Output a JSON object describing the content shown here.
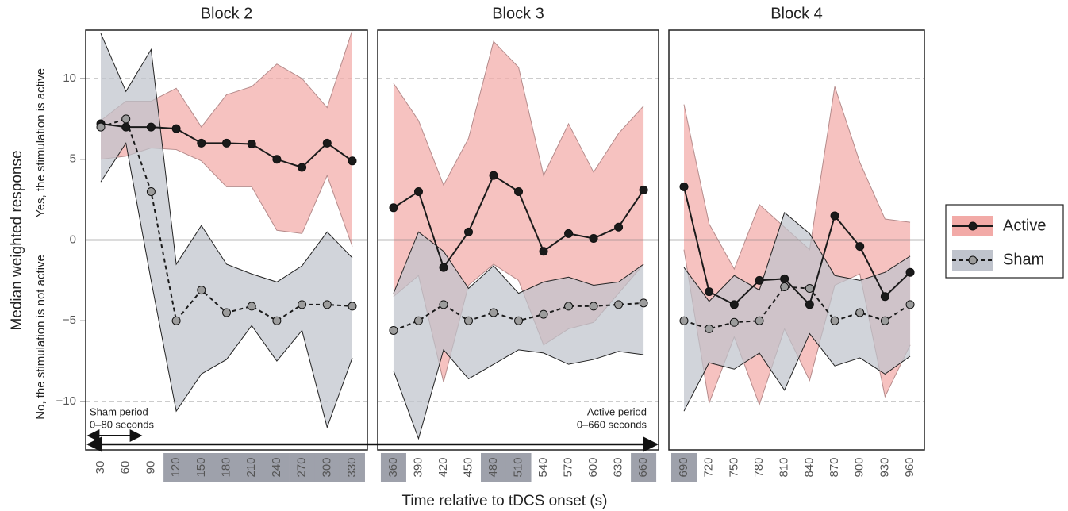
{
  "chart_data": {
    "type": "line",
    "ylabel": "Median weighted response",
    "ylabel_top": "Yes, the stimulation is active",
    "ylabel_bottom": "No, the stimulation is not active",
    "xlabel": "Time relative to tDCS onset (s)",
    "ylim": [
      -13,
      13
    ],
    "yticks": [
      {
        "value": -10,
        "label": "−10"
      },
      {
        "value": -5,
        "label": "−5"
      },
      0,
      5,
      10
    ],
    "dashed_lines": [
      -10,
      10
    ],
    "zero_line": 0,
    "legend": "right",
    "series": [
      {
        "name": "Active",
        "line_color": "#1a1a1a",
        "marker_color": "#1a1a1a",
        "fill": "#f2aaa7",
        "dashed": false
      },
      {
        "name": "Sham",
        "line_color": "#1a1a1a",
        "marker_color": "#9c9c9c",
        "fill": "#bfc3cc",
        "dashed": true
      }
    ],
    "annotations": [
      "Sham period",
      "0–80 seconds",
      "Active period",
      "0–660 seconds"
    ],
    "panels": [
      {
        "title": "Block 2",
        "xlim": [
          12,
          348
        ],
        "x": [
          30,
          60,
          90,
          120,
          150,
          180,
          210,
          240,
          270,
          300,
          330
        ],
        "highlight": [
          false,
          false,
          false,
          true,
          true,
          true,
          true,
          true,
          true,
          true,
          true
        ],
        "series": [
          {
            "values": [
              7.2,
              7.0,
              7.0,
              6.9,
              6.0,
              6.0,
              5.95,
              5.0,
              4.5,
              6.0,
              4.9
            ],
            "upper": [
              7.4,
              8.6,
              8.6,
              9.4,
              7.0,
              9.0,
              9.5,
              10.9,
              10.0,
              8.2,
              13.0
            ],
            "lower": [
              5.0,
              5.2,
              5.7,
              5.6,
              4.9,
              3.3,
              3.3,
              0.6,
              0.4,
              4.0,
              -0.4
            ]
          },
          {
            "values": [
              7.0,
              7.5,
              3.0,
              -5.0,
              -3.1,
              -4.5,
              -4.1,
              -5.0,
              -4.0,
              -4.0,
              -4.1
            ],
            "upper": [
              12.8,
              9.2,
              11.8,
              -1.5,
              0.9,
              -1.5,
              -2.1,
              -2.6,
              -1.6,
              0.5,
              -1.1
            ],
            "lower": [
              3.6,
              6.0,
              -2.5,
              -10.6,
              -8.3,
              -7.4,
              -5.3,
              -7.5,
              -5.6,
              -11.6,
              -7.3
            ]
          }
        ]
      },
      {
        "title": "Block 3",
        "xlim": [
          341,
          678
        ],
        "x": [
          360,
          390,
          420,
          450,
          480,
          510,
          540,
          570,
          600,
          630,
          660
        ],
        "highlight": [
          true,
          false,
          false,
          false,
          true,
          true,
          false,
          false,
          false,
          false,
          true
        ],
        "series": [
          {
            "values": [
              2.0,
              3.0,
              -1.7,
              0.5,
              4.0,
              3.0,
              -0.7,
              0.4,
              0.1,
              0.8,
              3.1
            ],
            "upper": [
              9.7,
              7.4,
              3.4,
              6.3,
              12.3,
              10.7,
              4.0,
              7.2,
              4.2,
              6.6,
              8.3
            ],
            "lower": [
              -3.5,
              -2.2,
              -8.8,
              -2.8,
              -1.5,
              -2.5,
              -6.5,
              -5.5,
              -5.1,
              -3.3,
              -1.5
            ]
          },
          {
            "values": [
              -5.6,
              -5.0,
              -4.0,
              -5.0,
              -4.5,
              -5.0,
              -4.6,
              -4.1,
              -4.1,
              -4.0,
              -3.9
            ],
            "upper": [
              -3.3,
              0.5,
              -0.7,
              -3.0,
              -1.6,
              -3.3,
              -2.6,
              -2.3,
              -2.8,
              -2.6,
              -1.5
            ],
            "lower": [
              -8.1,
              -12.3,
              -6.8,
              -8.6,
              -7.7,
              -6.8,
              -7.0,
              -7.7,
              -7.4,
              -6.9,
              -7.1
            ]
          }
        ]
      },
      {
        "title": "Block 4",
        "xlim": [
          672,
          977
        ],
        "x": [
          690,
          720,
          750,
          780,
          810,
          840,
          870,
          900,
          930,
          960
        ],
        "highlight": [
          true,
          false,
          false,
          false,
          false,
          false,
          false,
          false,
          false,
          false
        ],
        "series": [
          {
            "values": [
              3.3,
              -3.2,
              -4.0,
              -2.5,
              -2.4,
              -4.0,
              1.5,
              -0.4,
              -3.5,
              -2.0
            ],
            "upper": [
              8.4,
              1.0,
              -1.8,
              2.2,
              0.8,
              -0.6,
              9.5,
              4.8,
              1.3,
              1.1
            ],
            "lower": [
              -0.6,
              -10.1,
              -6.0,
              -10.2,
              -5.5,
              -8.7,
              -2.8,
              -2.1,
              -9.7,
              -6.5
            ]
          },
          {
            "values": [
              -5.0,
              -5.5,
              -5.1,
              -5.0,
              -2.9,
              -3.0,
              -5.0,
              -4.5,
              -5.0,
              -4.0
            ],
            "upper": [
              -1.7,
              -3.8,
              -2.2,
              -3.1,
              1.7,
              0.4,
              -2.2,
              -2.5,
              -2.0,
              -1.0
            ],
            "lower": [
              -10.6,
              -7.6,
              -8.0,
              -7.0,
              -9.3,
              -5.8,
              -7.8,
              -7.3,
              -8.3,
              -7.2
            ]
          }
        ]
      }
    ]
  }
}
